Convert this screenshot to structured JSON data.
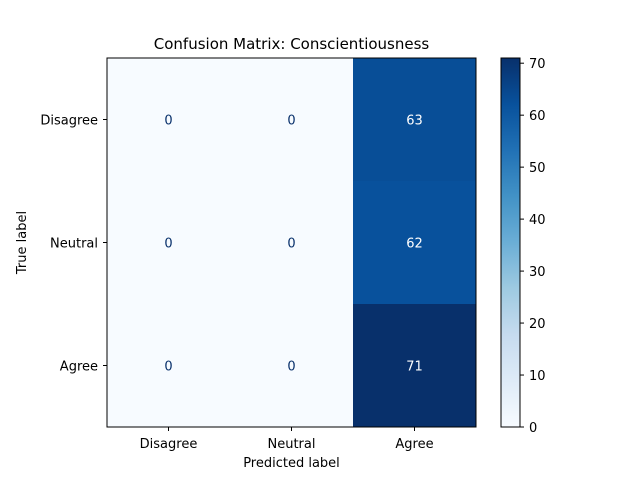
{
  "chart_data": {
    "type": "heatmap",
    "title": "Confusion Matrix: Conscientiousness",
    "xlabel": "Predicted label",
    "ylabel": "True label",
    "x_categories": [
      "Disagree",
      "Neutral",
      "Agree"
    ],
    "y_categories": [
      "Disagree",
      "Neutral",
      "Agree"
    ],
    "values": [
      [
        0,
        0,
        63
      ],
      [
        0,
        0,
        62
      ],
      [
        0,
        0,
        71
      ]
    ],
    "colormap": "Blues",
    "colorbar": {
      "range": [
        0,
        71
      ],
      "ticks": [
        0,
        10,
        20,
        30,
        40,
        50,
        60,
        70
      ]
    },
    "grid": false
  },
  "colors": {
    "cmap_low": "#f7fbff",
    "cmap_high": "#08306b",
    "text_dark": "#08306b",
    "text_light": "#ffffff"
  }
}
